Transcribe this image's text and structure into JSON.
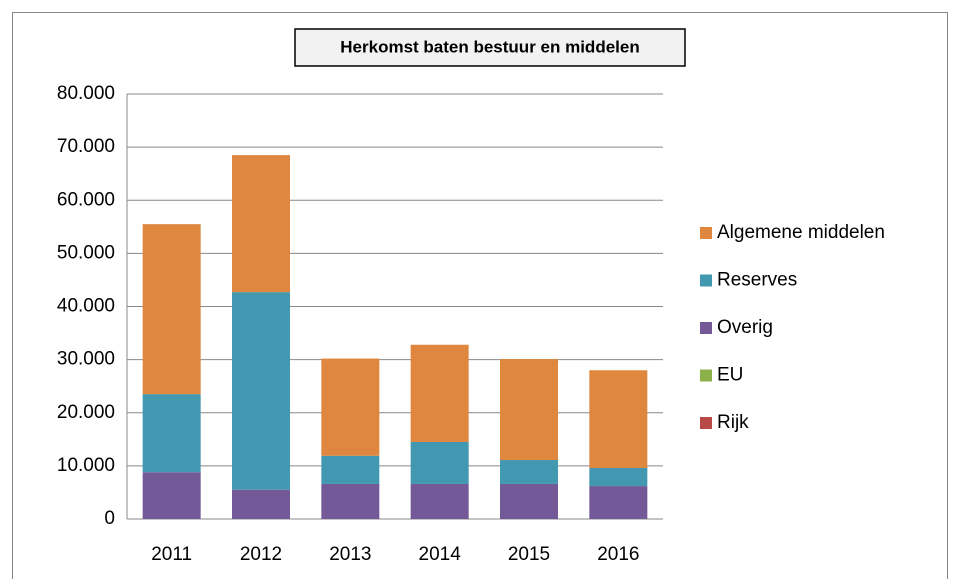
{
  "chart_data": {
    "type": "stacked_bar",
    "title": "Herkomst baten bestuur  en middelen",
    "categories": [
      "2011",
      "2012",
      "2013",
      "2014",
      "2015",
      "2016"
    ],
    "series": [
      {
        "name": "Algemene middelen",
        "color": "#e0873f",
        "values": [
          32000,
          25800,
          18300,
          18300,
          19000,
          18400
        ]
      },
      {
        "name": "Reserves",
        "color": "#4298b0",
        "values": [
          14700,
          37200,
          5300,
          7900,
          4500,
          3400
        ]
      },
      {
        "name": "Overig",
        "color": "#735997",
        "values": [
          8800,
          5500,
          6600,
          6600,
          6600,
          6200
        ]
      },
      {
        "name": "EU",
        "color": "#8cb04a",
        "values": [
          0,
          0,
          0,
          0,
          0,
          0
        ]
      },
      {
        "name": "Rijk",
        "color": "#b84a47",
        "values": [
          0,
          0,
          0,
          0,
          0,
          0
        ]
      }
    ],
    "ylim": [
      0,
      80000
    ],
    "yticks": [
      0,
      {
        "value": 10000,
        "label": "10.000"
      },
      {
        "value": 20000,
        "label": "20.000"
      },
      {
        "value": 30000,
        "label": "30.000"
      },
      {
        "value": 40000,
        "label": "40.000"
      },
      {
        "value": 50000,
        "label": "50.000"
      },
      {
        "value": 60000,
        "label": "60.000"
      },
      {
        "value": 70000,
        "label": "70.000"
      },
      {
        "value": 80000,
        "label": "80.000"
      }
    ],
    "grid": true,
    "legend": "right"
  }
}
